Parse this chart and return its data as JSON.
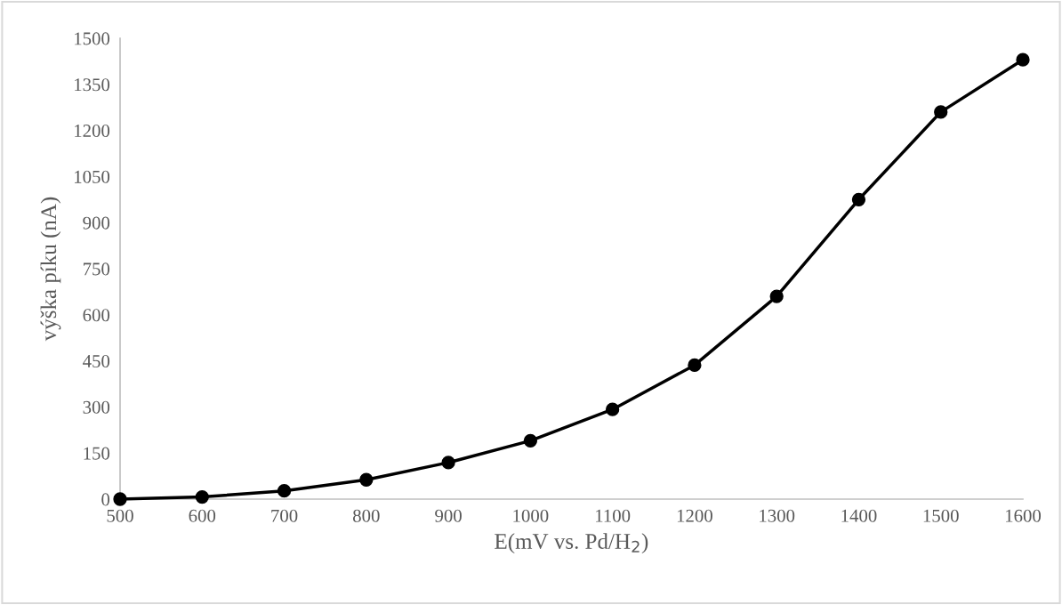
{
  "chart_data": {
    "type": "line",
    "xlabel": "E(mV vs. Pd/H$_{2}$)",
    "ylabel": "výška píku (nA)",
    "x": [
      500,
      600,
      700,
      800,
      900,
      1000,
      1100,
      1200,
      1300,
      1400,
      1500,
      1600
    ],
    "series": [
      {
        "color": "#000000",
        "values": [
          0,
          7,
          27,
          63,
          119,
          190,
          292,
          436,
          660,
          975,
          1260,
          1430
        ]
      }
    ],
    "xlim": [
      500,
      1600
    ],
    "xticks": [
      500,
      600,
      700,
      800,
      900,
      1000,
      1100,
      1200,
      1300,
      1400,
      1500,
      1600
    ],
    "ylim": [
      0,
      1500
    ],
    "yticks": [
      0,
      150,
      300,
      450,
      600,
      750,
      900,
      1050,
      1200,
      1350,
      1500
    ],
    "grid": false,
    "marker": "circle",
    "line_style": "solid"
  }
}
